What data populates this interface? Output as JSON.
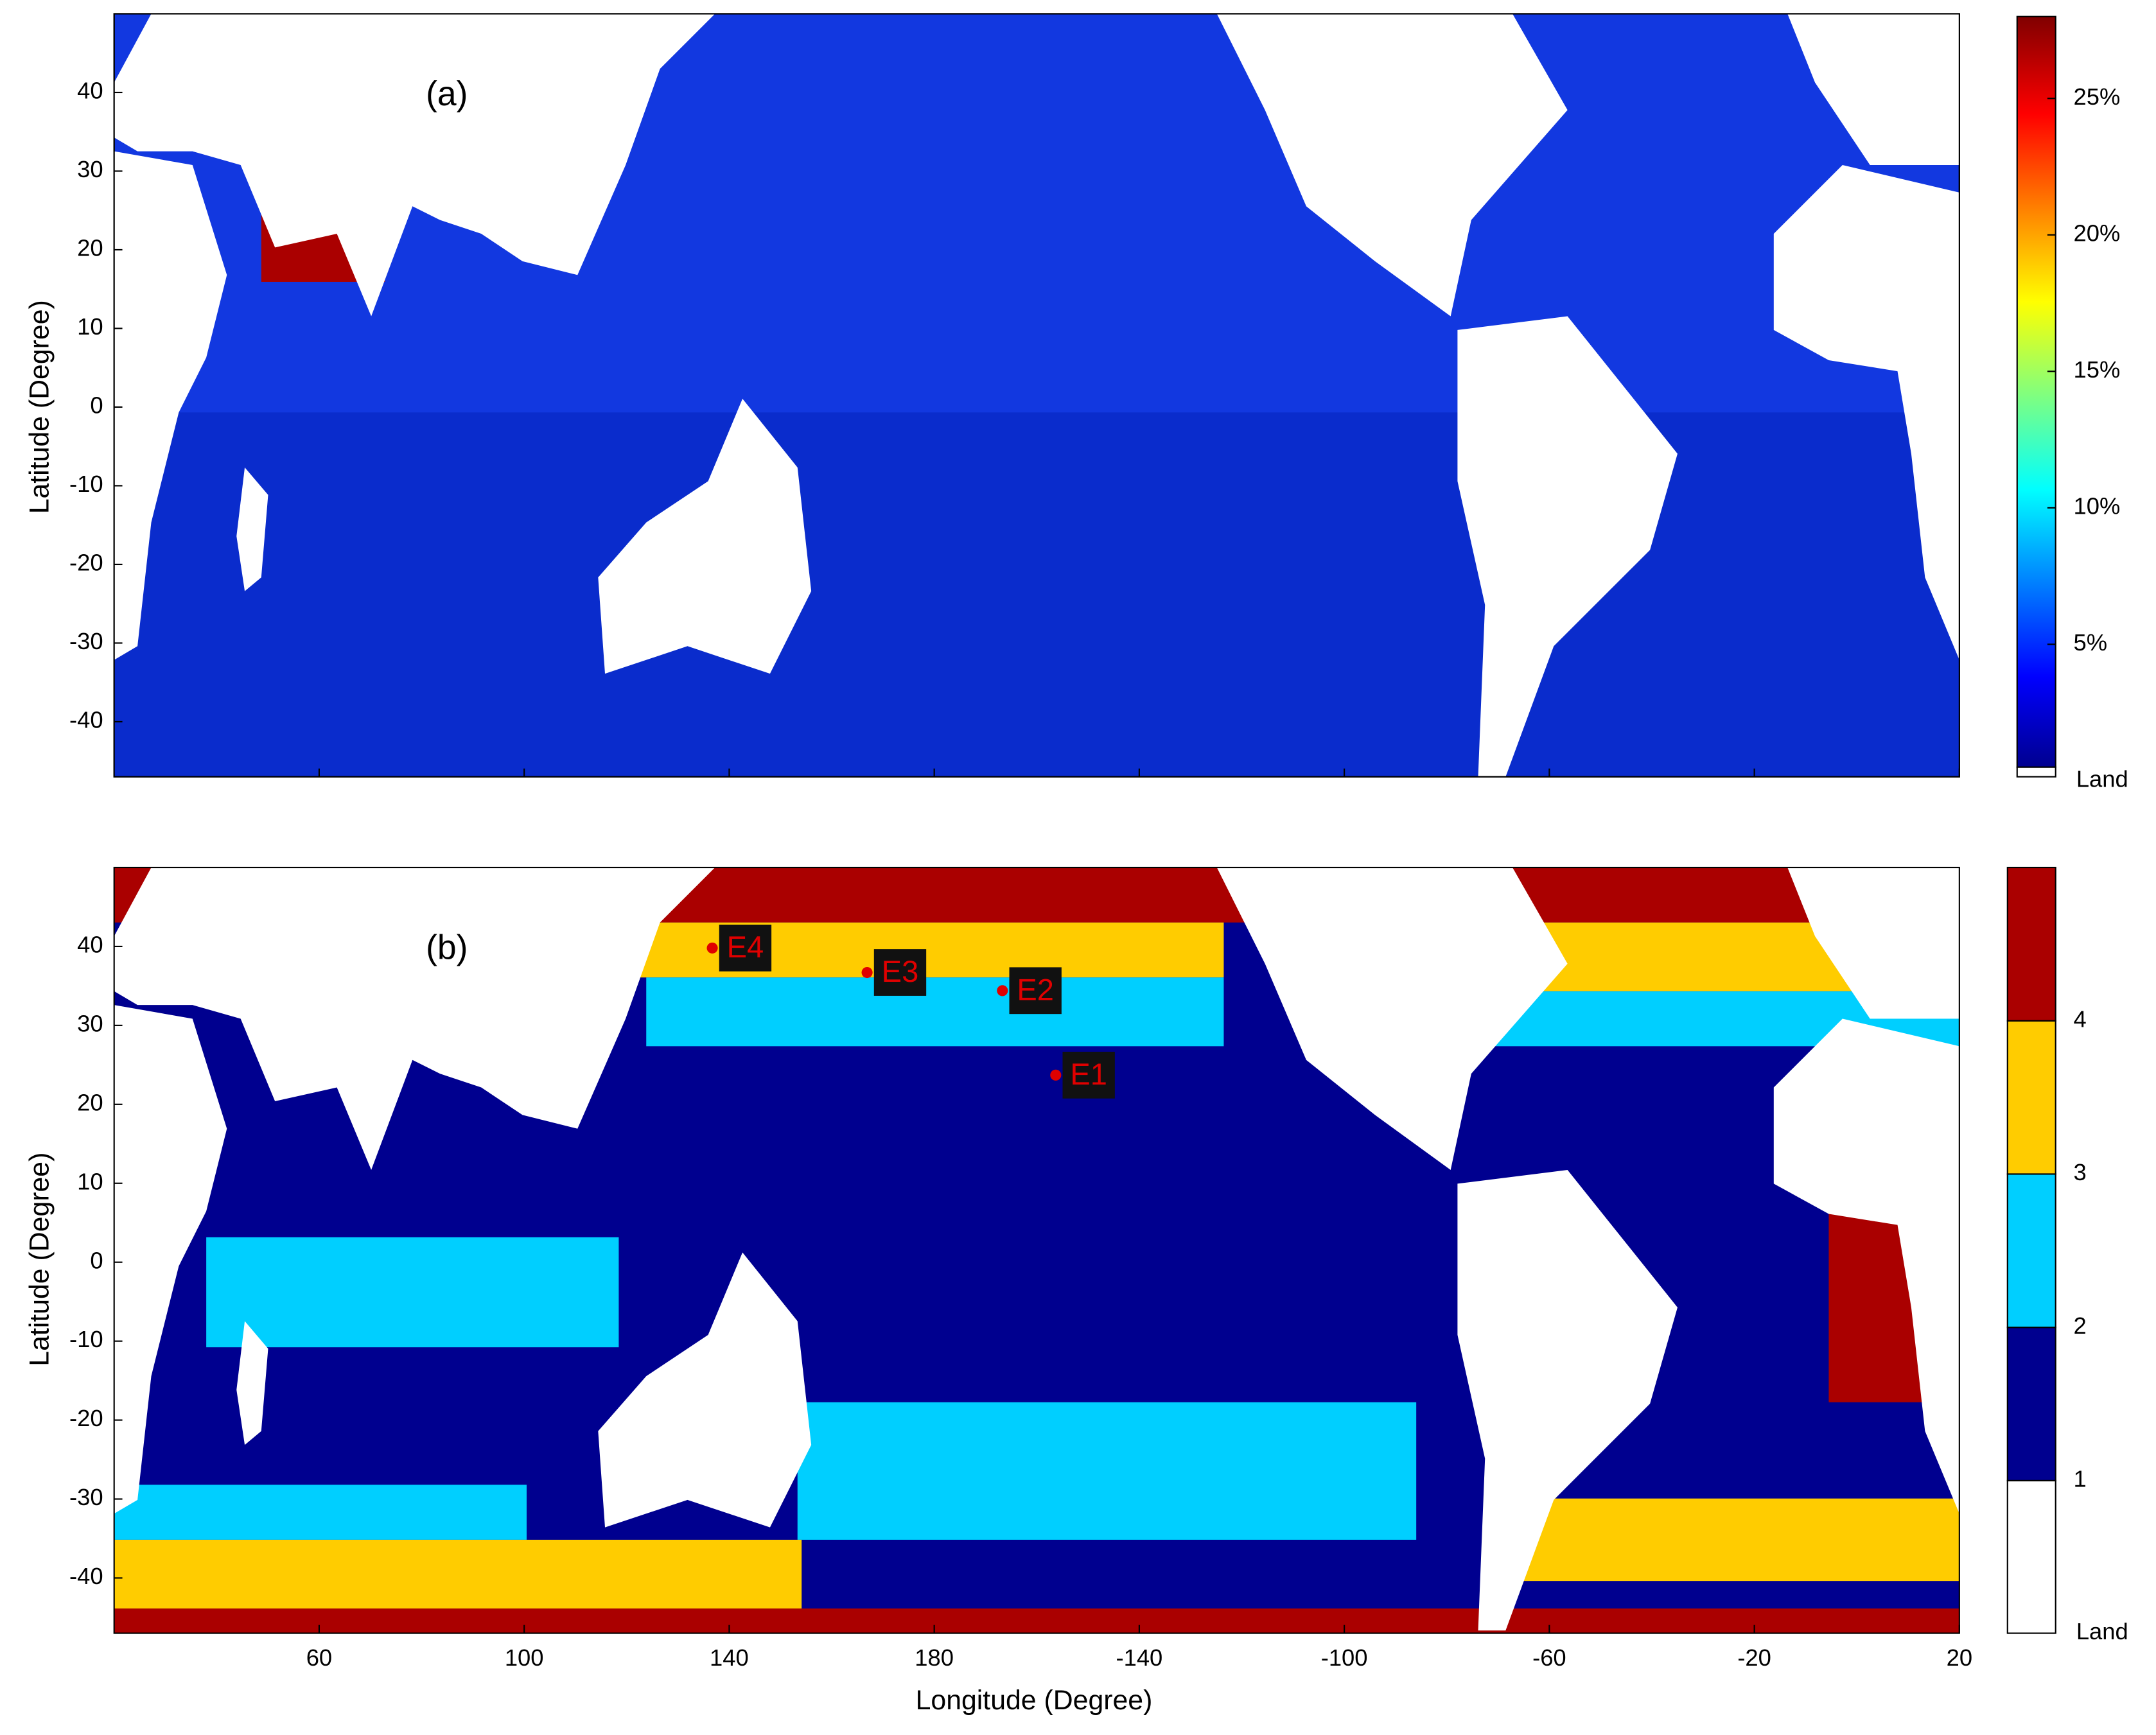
{
  "axes": {
    "y_label": "Latitude (Degree)",
    "x_label": "Longitude (Degree)",
    "ylim": [
      -47,
      50
    ],
    "yticks": [
      40,
      30,
      20,
      10,
      0,
      -10,
      -20,
      -30,
      -40
    ],
    "xlim": [
      20,
      380
    ],
    "xticks": [
      60,
      100,
      140,
      180,
      -140,
      -100,
      -60,
      -20,
      20
    ]
  },
  "panels": [
    {
      "label": "(a)",
      "colorbar": {
        "clim": [
          0.5,
          28
        ],
        "ticks": [
          {
            "value": 25,
            "label": "25%"
          },
          {
            "value": 20,
            "label": "20%"
          },
          {
            "value": 15,
            "label": "15%"
          },
          {
            "value": 10,
            "label": "10%"
          },
          {
            "value": 5,
            "label": "5%"
          }
        ],
        "land_label": "Land"
      }
    },
    {
      "label": "(b)",
      "colorbar": {
        "classes": [
          "1",
          "2",
          "3",
          "4"
        ],
        "colors": [
          "#00008f",
          "#00cfff",
          "#ffcc00",
          "#aa0000"
        ],
        "land_label": "Land"
      },
      "markers": [
        {
          "label": "E1",
          "lon": -156.3,
          "lat": 23.7
        },
        {
          "label": "E2",
          "lon": -166.7,
          "lat": 34.4
        },
        {
          "label": "E3",
          "lon": 166.9,
          "lat": 36.7
        },
        {
          "label": "E4",
          "lon": 136.7,
          "lat": 39.8
        }
      ]
    }
  ]
}
